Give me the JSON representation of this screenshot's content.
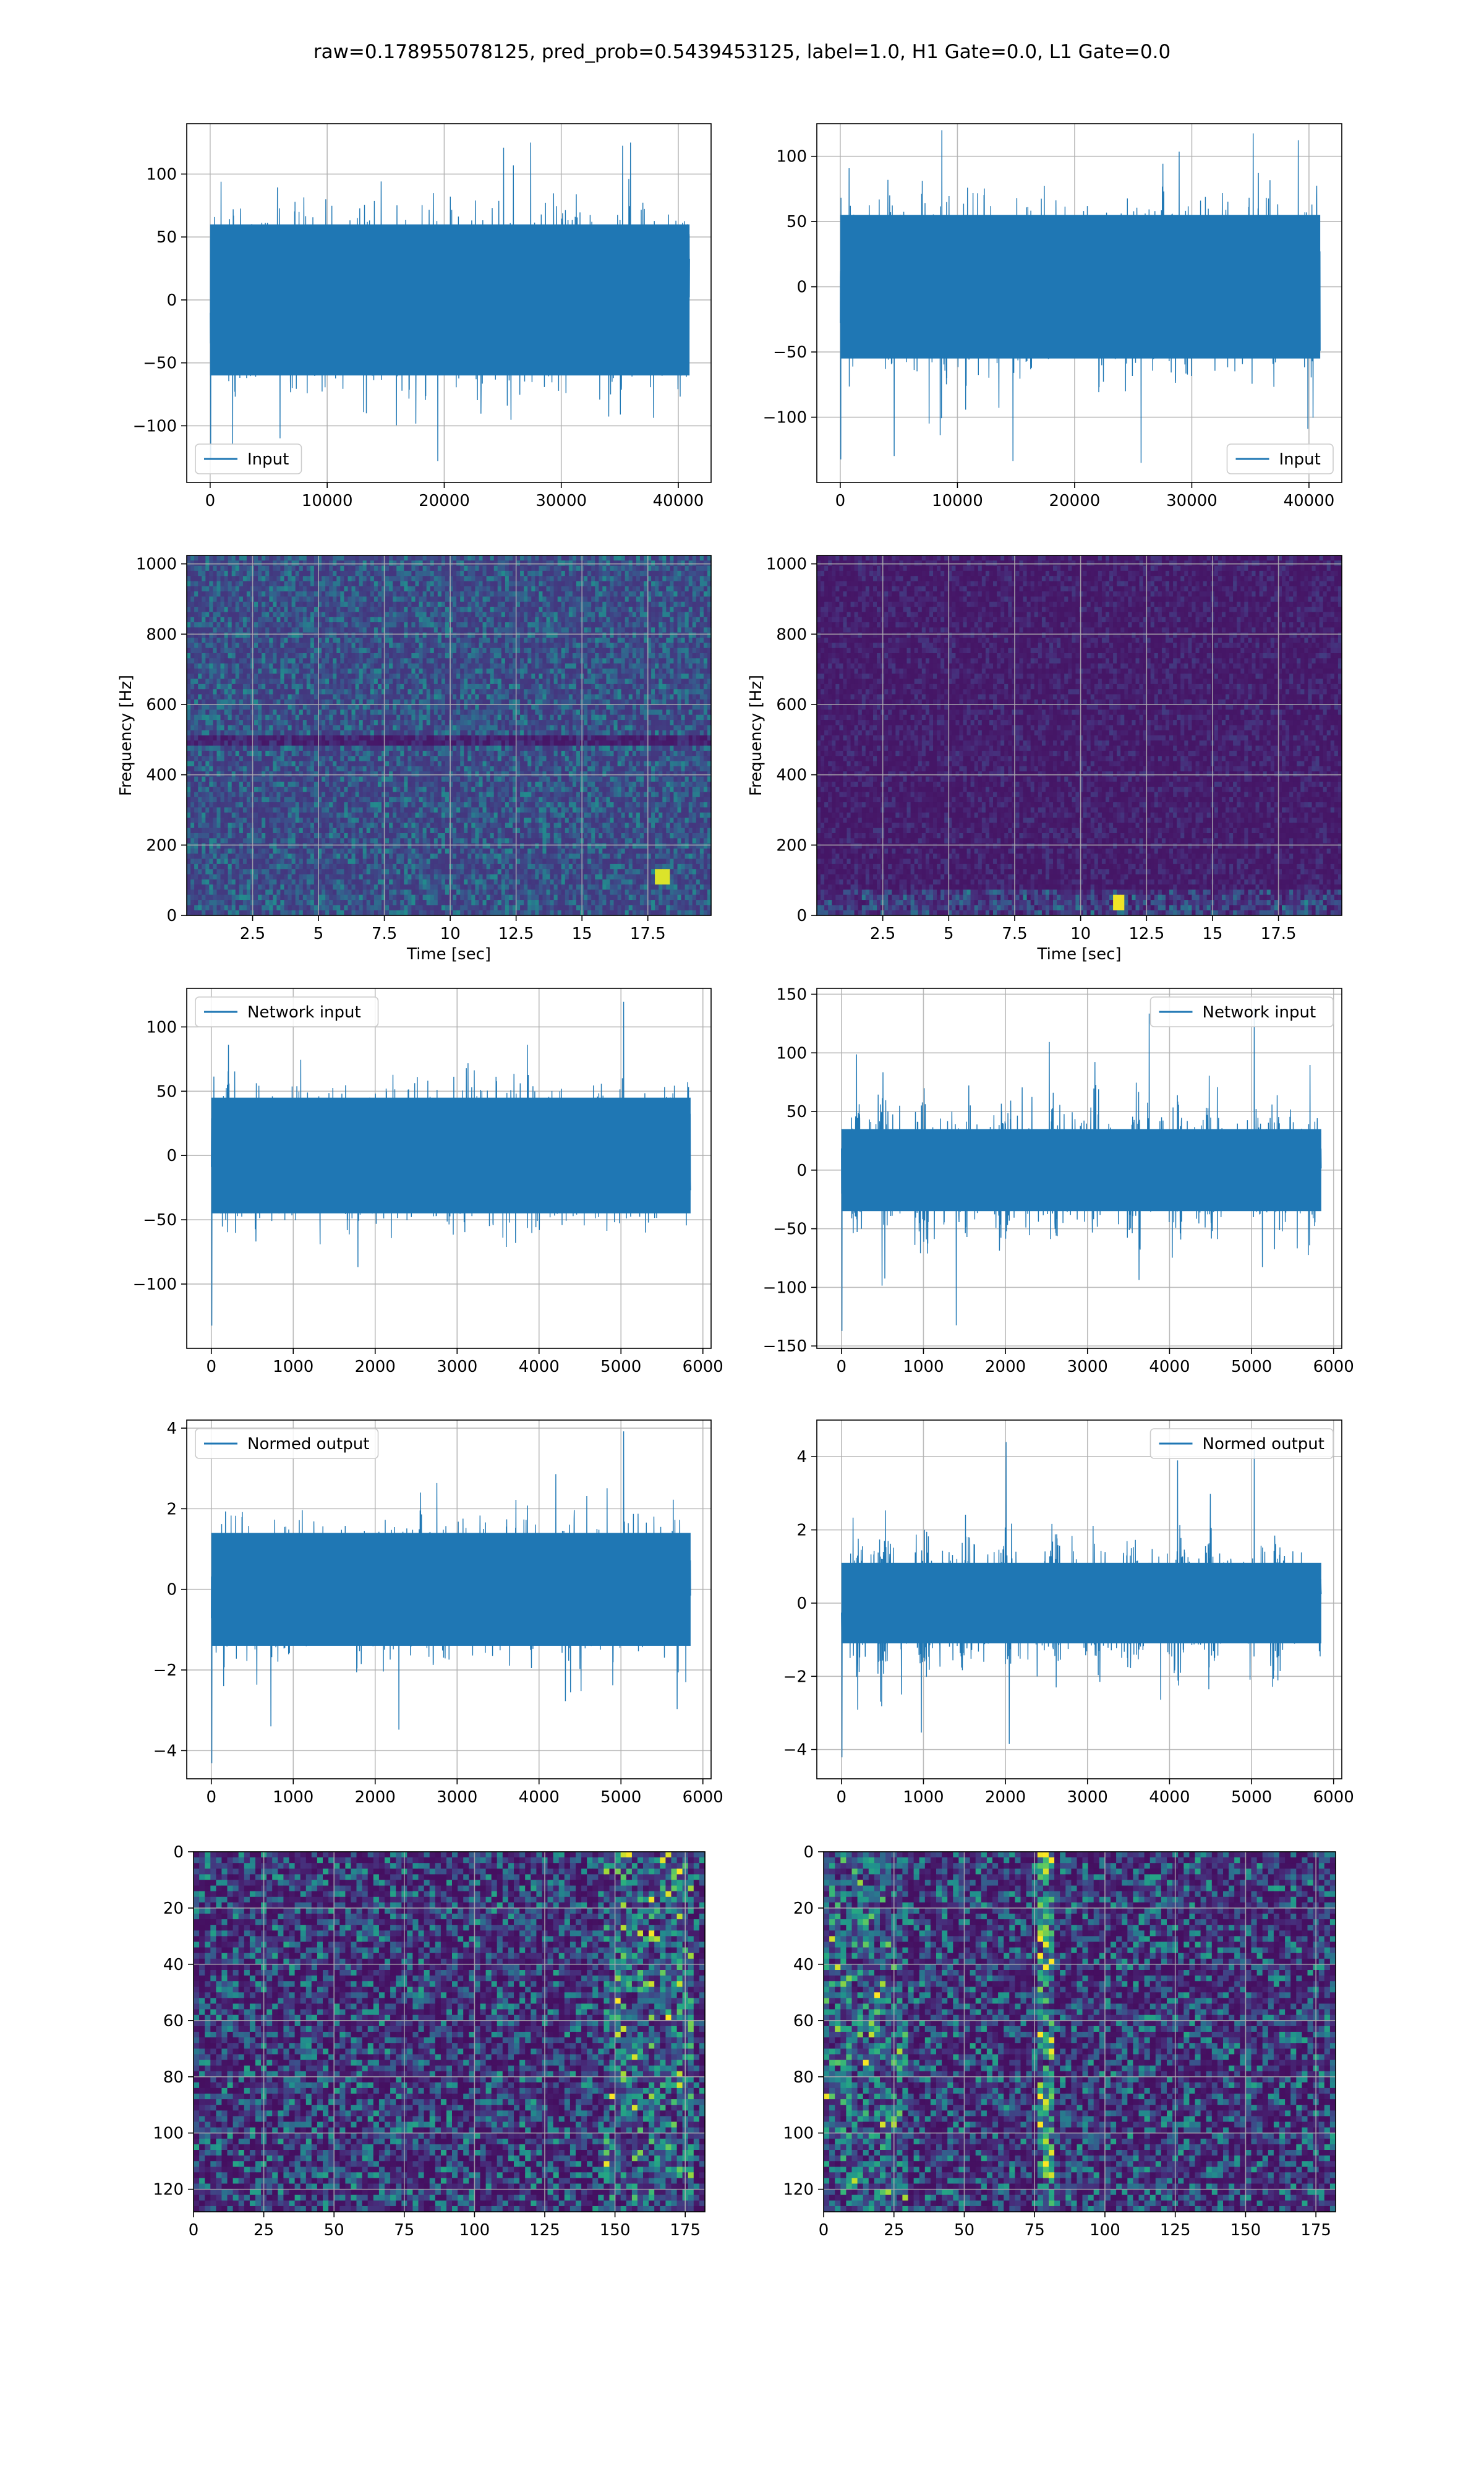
{
  "title": "raw=0.178955078125, pred_prob=0.5439453125, label=1.0, H1 Gate=0.0, L1 Gate=0.0",
  "colors": {
    "series": "#1f77b4",
    "grid": "#b0b0b0",
    "viridis_low": "#440154",
    "viridis_high": "#fde725"
  },
  "chart_data": [
    {
      "id": "input-h1",
      "type": "line",
      "legend": [
        "Input"
      ],
      "legend_loc": "lower left",
      "xlim": [
        -2000,
        42800
      ],
      "ylim": [
        -145,
        140
      ],
      "xticks": [
        0,
        10000,
        20000,
        30000,
        40000
      ],
      "yticks": [
        -100,
        -50,
        0,
        50,
        100
      ],
      "grid": true,
      "n_samples": 40960,
      "x": [
        0,
        10000,
        20000,
        30000,
        40960
      ],
      "envelope_mid": [
        -60,
        60
      ],
      "peaks": [
        -128,
        125
      ]
    },
    {
      "id": "input-l1",
      "type": "line",
      "legend": [
        "Input"
      ],
      "legend_loc": "lower right",
      "xlim": [
        -2000,
        42800
      ],
      "ylim": [
        -150,
        125
      ],
      "xticks": [
        0,
        10000,
        20000,
        30000,
        40000
      ],
      "yticks": [
        -100,
        -50,
        0,
        50,
        100
      ],
      "grid": true,
      "n_samples": 40960,
      "x": [
        0,
        10000,
        20000,
        30000,
        40960
      ],
      "envelope_mid": [
        -55,
        55
      ],
      "peaks": [
        -135,
        120
      ]
    },
    {
      "id": "spec-h1",
      "type": "heatmap",
      "xlabel": "Time [sec]",
      "ylabel": "Frequency [Hz]",
      "xlim": [
        0,
        19.9
      ],
      "ylim": [
        0,
        1024
      ],
      "xticks": [
        2.5,
        5.0,
        7.5,
        10.0,
        12.5,
        15.0,
        17.5
      ],
      "yticks": [
        0,
        200,
        400,
        600,
        800,
        1000
      ],
      "grid": true,
      "colormap": "viridis",
      "notes": [
        "dark horizontal band near 500 Hz",
        "bright spot near 18 s, 100 Hz"
      ]
    },
    {
      "id": "spec-l1",
      "type": "heatmap",
      "xlabel": "Time [sec]",
      "ylabel": "Frequency [Hz]",
      "xlim": [
        0,
        19.9
      ],
      "ylim": [
        0,
        1024
      ],
      "xticks": [
        2.5,
        5.0,
        7.5,
        10.0,
        12.5,
        15.0,
        17.5
      ],
      "yticks": [
        0,
        200,
        400,
        600,
        800,
        1000
      ],
      "grid": true,
      "colormap": "viridis",
      "notes": [
        "mostly dark",
        "brighter power below 50 Hz",
        "bright spot near 11.5 s, 30 Hz"
      ]
    },
    {
      "id": "network-h1",
      "type": "line",
      "legend": [
        "Network input"
      ],
      "legend_loc": "upper left",
      "xlim": [
        -300,
        6100
      ],
      "ylim": [
        -150,
        130
      ],
      "xticks": [
        0,
        1000,
        2000,
        3000,
        4000,
        5000,
        6000
      ],
      "yticks": [
        -100,
        -50,
        0,
        50,
        100
      ],
      "grid": true,
      "n_samples": 5850,
      "envelope_mid": [
        -45,
        45
      ],
      "peaks": [
        -135,
        122
      ]
    },
    {
      "id": "network-l1",
      "type": "line",
      "legend": [
        "Network input"
      ],
      "legend_loc": "upper right",
      "xlim": [
        -300,
        6100
      ],
      "ylim": [
        -152,
        155
      ],
      "xticks": [
        0,
        1000,
        2000,
        3000,
        4000,
        5000,
        6000
      ],
      "yticks": [
        -150,
        -100,
        -50,
        0,
        50,
        100,
        150
      ],
      "grid": true,
      "n_samples": 5850,
      "envelope_mid": [
        -35,
        35
      ],
      "bursts_x": [
        200,
        500,
        1000,
        1500,
        2000,
        2600,
        3100,
        3600,
        4100,
        4500,
        5300
      ],
      "peaks": [
        -140,
        141
      ]
    },
    {
      "id": "normed-h1",
      "type": "line",
      "legend": [
        "Normed output"
      ],
      "legend_loc": "upper left",
      "xlim": [
        -300,
        6100
      ],
      "ylim": [
        -4.7,
        4.2
      ],
      "xticks": [
        0,
        1000,
        2000,
        3000,
        4000,
        5000,
        6000
      ],
      "yticks": [
        -4,
        -2,
        0,
        2,
        4
      ],
      "grid": true,
      "n_samples": 5850,
      "envelope_mid": [
        -1.4,
        1.4
      ],
      "peaks": [
        -4.4,
        4.0
      ]
    },
    {
      "id": "normed-l1",
      "type": "line",
      "legend": [
        "Normed output"
      ],
      "legend_loc": "upper right",
      "xlim": [
        -300,
        6100
      ],
      "ylim": [
        -4.8,
        5.0
      ],
      "xticks": [
        0,
        1000,
        2000,
        3000,
        4000,
        5000,
        6000
      ],
      "yticks": [
        -4,
        -2,
        0,
        2,
        4
      ],
      "grid": true,
      "n_samples": 5850,
      "envelope_mid": [
        -1.1,
        1.1
      ],
      "bursts_x": [
        200,
        500,
        1000,
        1500,
        2000,
        2600,
        3100,
        3600,
        4100,
        4500,
        5300
      ],
      "peaks": [
        -4.3,
        4.4
      ]
    },
    {
      "id": "matrix-h1",
      "type": "heatmap",
      "colormap": "viridis",
      "shape": [
        128,
        182
      ],
      "xlim": [
        0,
        182
      ],
      "ylim": [
        128,
        0
      ],
      "xticks": [
        0,
        25,
        50,
        75,
        100,
        125,
        150,
        175
      ],
      "yticks": [
        0,
        20,
        40,
        60,
        80,
        100,
        120
      ],
      "grid": true,
      "notes": [
        "brighter cells concentrated around columns 150-175"
      ]
    },
    {
      "id": "matrix-l1",
      "type": "heatmap",
      "colormap": "viridis",
      "shape": [
        128,
        182
      ],
      "xlim": [
        0,
        182
      ],
      "ylim": [
        128,
        0
      ],
      "xticks": [
        0,
        25,
        50,
        75,
        100,
        125,
        150,
        175
      ],
      "yticks": [
        0,
        20,
        40,
        60,
        80,
        100,
        120
      ],
      "grid": true,
      "notes": [
        "bright vertical band around column 78",
        "brighter cells in columns 0-30"
      ]
    }
  ]
}
